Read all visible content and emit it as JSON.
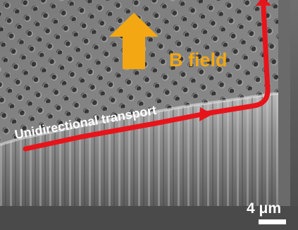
{
  "annotations": {
    "field_label": "B field",
    "transport_label": "Unidirectional transport",
    "scale_bar_label": "4 μm"
  },
  "colors": {
    "field_arrow": "#f3a712",
    "transport_arrow": "#e8141b",
    "label_white": "#ffffff",
    "label_orange": "#f3a712"
  },
  "icons": {
    "field_arrow": "up-arrow-icon",
    "transport_arrow": "path-arrow-icon"
  }
}
